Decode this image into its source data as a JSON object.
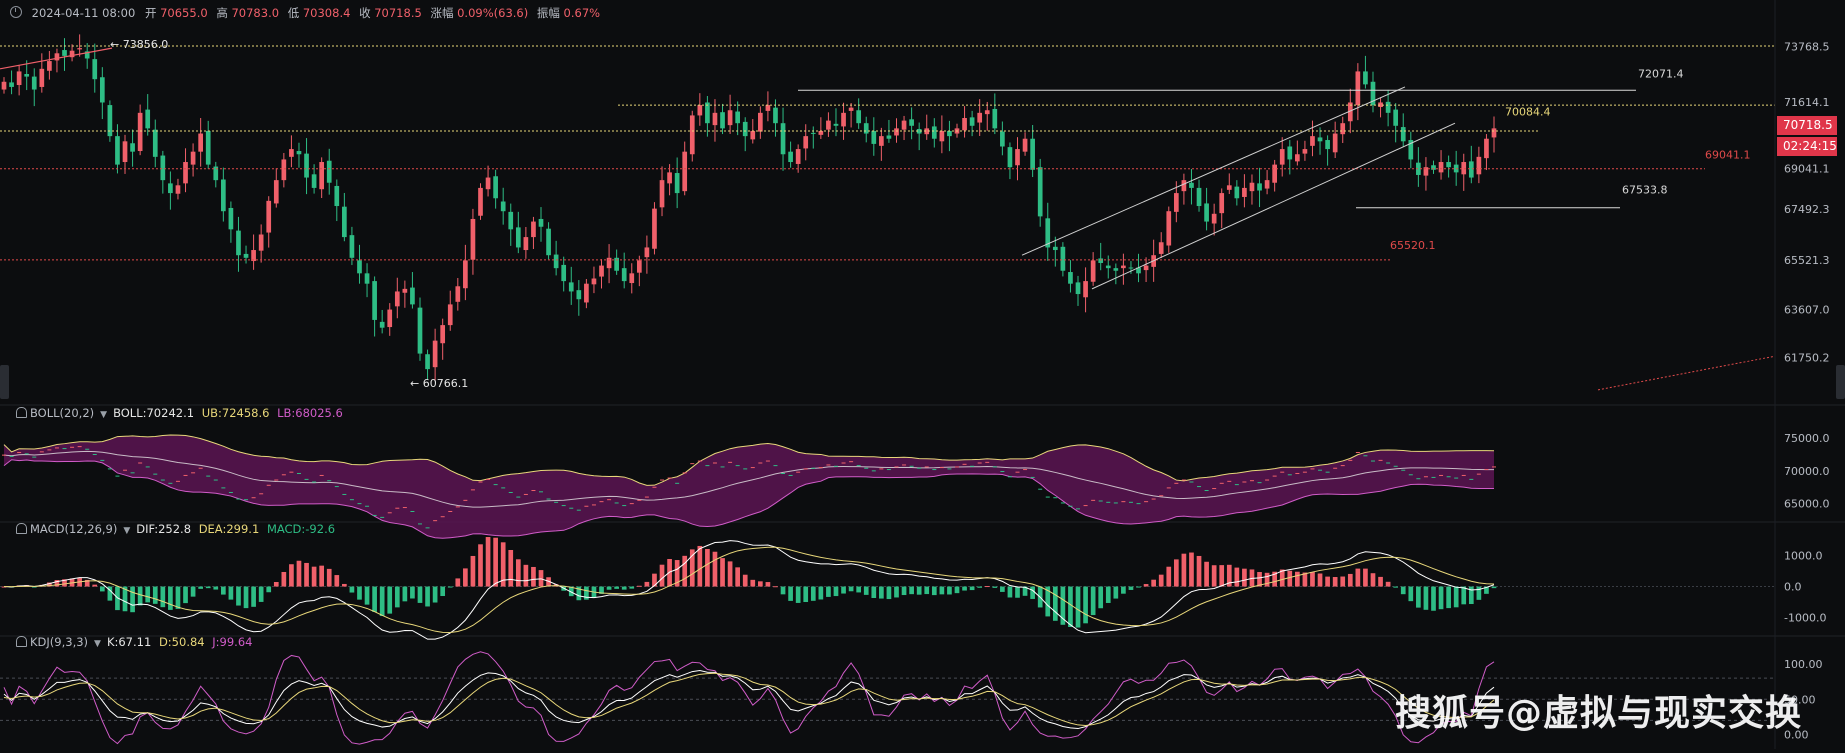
{
  "infobar": {
    "datetime": "2024-04-11 08:00",
    "open_label": "开",
    "open": "70655.0",
    "high_label": "高",
    "high": "70783.0",
    "low_label": "低",
    "low": "70308.4",
    "close_label": "收",
    "close": "70718.5",
    "change_label": "涨幅",
    "change": "0.09%(63.6)",
    "amp_label": "振幅",
    "amp": "0.67%"
  },
  "boll_label": {
    "name": "BOLL(20,2)",
    "boll": "BOLL:70242.1",
    "ub": "UB:72458.6",
    "lb": "LB:68025.6"
  },
  "macd_label": {
    "name": "MACD(12,26,9)",
    "dif": "DIF:252.8",
    "dea": "DEA:299.1",
    "macd": "MACD:-92.6"
  },
  "kdj_label": {
    "name": "KDJ(9,3,3)",
    "k": "K:67.11",
    "d": "D:50.84",
    "j": "J:99.64"
  },
  "price_tags": {
    "current": "70718.5",
    "countdown": "02:24:15"
  },
  "watermark": "搜狐号@虚拟与现实交换",
  "colors": {
    "up": "#f0606a",
    "down": "#2ebd85",
    "background": "#0c0d0f",
    "boll_band": "#5c1552",
    "ub_line": "#e8d77a",
    "lb_line": "#d05cc8",
    "dif": "#ffffff",
    "dea": "#e8d77a",
    "k_line": "#ffffff",
    "d_line": "#e8d77a",
    "j_line": "#d05cc8",
    "dotted_yellow": "#e8d77a",
    "dotted_red": "#e04a4a"
  },
  "chart_data": {
    "type": "candlestick",
    "interval": "4h",
    "y_axis": {
      "ticks": [
        61750.2,
        63607.0,
        65521.3,
        67492.3,
        69041.1,
        71614.1,
        73768.5
      ],
      "labels": [
        "61750.2",
        "63607.0",
        "65521.3",
        "67492.3",
        "69041.1",
        "71614.1",
        "73768.5"
      ]
    },
    "price_range": [
      60500,
      74500
    ],
    "candles_close": [
      72400,
      72200,
      72800,
      72600,
      72100,
      72900,
      73200,
      73500,
      73400,
      73600,
      73700,
      73300,
      72500,
      71600,
      70300,
      69200,
      70100,
      69700,
      71200,
      70600,
      69500,
      68600,
      68100,
      68400,
      69300,
      69700,
      70400,
      69200,
      68600,
      67400,
      66700,
      65700,
      65600,
      65900,
      66500,
      67800,
      68600,
      69400,
      69800,
      69600,
      68700,
      68300,
      69300,
      68500,
      67600,
      66400,
      65600,
      65000,
      64600,
      63200,
      62900,
      63600,
      64300,
      64400,
      63800,
      61900,
      61300,
      62400,
      63000,
      63800,
      64500,
      65500,
      67100,
      68300,
      68700,
      67900,
      67400,
      66700,
      66000,
      66400,
      67000,
      66800,
      65700,
      65200,
      64700,
      64300,
      64000,
      64600,
      64800,
      65300,
      65600,
      65100,
      64700,
      65000,
      65500,
      66000,
      67500,
      68600,
      68900,
      68100,
      69700,
      71100,
      71500,
      70800,
      71200,
      70600,
      71300,
      70800,
      70300,
      70500,
      71200,
      71500,
      70800,
      69600,
      69300,
      69800,
      70300,
      70400,
      70500,
      70900,
      70700,
      71200,
      71400,
      70800,
      70400,
      70000,
      70300,
      70200,
      70600,
      70900,
      70700,
      70400,
      70600,
      70200,
      70500,
      70300,
      70600,
      71000,
      70700,
      71200,
      71300,
      70600,
      69900,
      69100,
      69800,
      70200,
      69000,
      67200,
      66000,
      65900,
      65100,
      64600,
      64200,
      64700,
      65500,
      65400,
      65200,
      65100,
      65300,
      65200,
      65000,
      65300,
      65700,
      66200,
      67400,
      68100,
      68600,
      68300,
      67600,
      67000,
      67300,
      68100,
      68400,
      67900,
      68300,
      68500,
      68200,
      68600,
      69200,
      69800,
      69400,
      69600,
      69800,
      70300,
      70100,
      69800,
      70400,
      70800,
      71600,
      72800,
      72300,
      71500,
      71600,
      71200,
      70700,
      70100,
      69400,
      68800,
      69100,
      69000,
      69300,
      69100,
      68900,
      69300,
      68700,
      69500,
      70200,
      70600
    ],
    "annotations": {
      "high": {
        "value": 73856.0,
        "label": "73856.0"
      },
      "low": {
        "value": 60766.1,
        "label": "60766.1"
      },
      "levels": [
        {
          "value": 72071.4,
          "label": "72071.4",
          "style": "solid-white"
        },
        {
          "value": 70084.4,
          "label": "70084.4",
          "style": "dotted-yellow"
        },
        {
          "value": 69041.1,
          "label": "69041.1",
          "style": "dotted-red"
        },
        {
          "value": 67533.8,
          "label": "67533.8",
          "style": "solid-white"
        },
        {
          "value": 65520.1,
          "label": "65520.1",
          "style": "dotted-red"
        }
      ]
    },
    "boll_axis": {
      "labels": [
        "75000.0",
        "70000.0",
        "65000.0"
      ],
      "values": [
        75000,
        70000,
        65000
      ]
    },
    "macd_axis": {
      "labels": [
        "1000.0",
        "0.0",
        "-1000.0"
      ],
      "values": [
        1000,
        0,
        -1000
      ]
    },
    "kdj_axis": {
      "labels": [
        "100.00",
        "50.00",
        "0.00"
      ],
      "values": [
        100,
        50,
        0
      ]
    }
  }
}
